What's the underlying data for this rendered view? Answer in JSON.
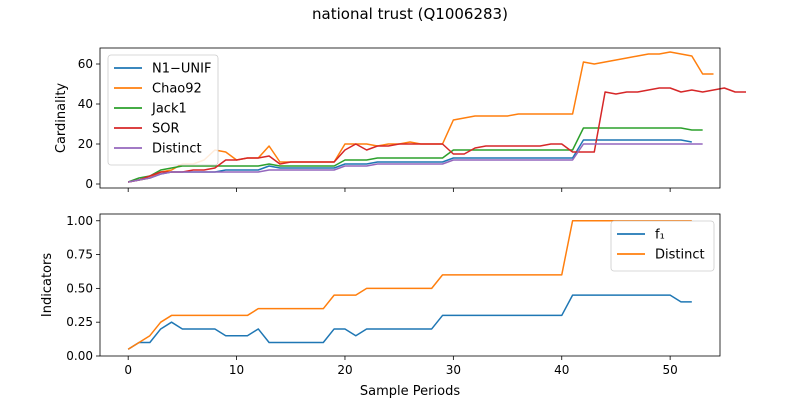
{
  "figure": {
    "title": "national trust (Q1006283)"
  },
  "chart_data": [
    {
      "type": "line",
      "ylabel": "Cardinality",
      "xlabel": "",
      "xlim": [
        -2.6,
        54.6
      ],
      "ylim": [
        -2,
        68
      ],
      "xticks": [
        0,
        10,
        20,
        30,
        40,
        50
      ],
      "yticks": [
        0,
        20,
        40,
        60
      ],
      "show_x_ticklabels": false,
      "grid": false,
      "legend": {
        "position": "top-left",
        "entries": [
          "N1−UNIF",
          "Chao92",
          "Jack1",
          "SOR",
          "Distinct"
        ]
      },
      "series": [
        {
          "name": "N1−UNIF",
          "color": "#1f77b4",
          "values": [
            1,
            2,
            3,
            5,
            6,
            6,
            6,
            6,
            6,
            7,
            7,
            7,
            7,
            9,
            8,
            8,
            8,
            8,
            8,
            8,
            10,
            10,
            10,
            11,
            11,
            11,
            11,
            11,
            11,
            11,
            13,
            13,
            13,
            13,
            13,
            13,
            13,
            13,
            13,
            13,
            13,
            13,
            22,
            22,
            22,
            22,
            22,
            22,
            22,
            22,
            22,
            22,
            21
          ]
        },
        {
          "name": "Chao92",
          "color": "#ff7f0e",
          "values": [
            1,
            2,
            3,
            6,
            7,
            10,
            10,
            12,
            17,
            16,
            12,
            13,
            13,
            19,
            11,
            11,
            11,
            11,
            11,
            11,
            20,
            20,
            20,
            19,
            20,
            20,
            21,
            20,
            20,
            20,
            32,
            33,
            34,
            34,
            34,
            34,
            35,
            35,
            35,
            35,
            35,
            35,
            61,
            60,
            61,
            62,
            63,
            64,
            65,
            65,
            66,
            65,
            64,
            55,
            55
          ]
        },
        {
          "name": "Jack1",
          "color": "#2ca02c",
          "values": [
            1,
            3,
            4,
            7,
            8,
            9,
            9,
            9,
            9,
            9,
            9,
            9,
            9,
            10,
            9,
            9,
            9,
            9,
            9,
            9,
            12,
            12,
            12,
            13,
            13,
            13,
            13,
            13,
            13,
            13,
            17,
            17,
            17,
            17,
            17,
            17,
            17,
            17,
            17,
            17,
            17,
            17,
            28,
            28,
            28,
            28,
            28,
            28,
            28,
            28,
            28,
            28,
            27,
            27
          ]
        },
        {
          "name": "SOR",
          "color": "#d62728",
          "values": [
            1,
            2,
            4,
            6,
            6,
            6,
            7,
            7,
            8,
            12,
            12,
            13,
            13,
            14,
            10,
            11,
            11,
            11,
            11,
            11,
            17,
            20,
            17,
            19,
            19,
            20,
            20,
            20,
            20,
            20,
            15,
            15,
            18,
            19,
            19,
            19,
            19,
            19,
            19,
            20,
            20,
            16,
            16,
            16,
            46,
            45,
            46,
            46,
            47,
            48,
            48,
            46,
            47,
            46,
            47,
            48,
            46,
            46
          ]
        },
        {
          "name": "Distinct",
          "color": "#9467bd",
          "values": [
            1,
            2,
            3,
            5,
            6,
            6,
            6,
            6,
            6,
            6,
            6,
            6,
            6,
            7,
            7,
            7,
            7,
            7,
            7,
            7,
            9,
            9,
            9,
            10,
            10,
            10,
            10,
            10,
            10,
            10,
            12,
            12,
            12,
            12,
            12,
            12,
            12,
            12,
            12,
            12,
            12,
            12,
            20,
            20,
            20,
            20,
            20,
            20,
            20,
            20,
            20,
            20,
            20,
            20
          ]
        }
      ]
    },
    {
      "type": "line",
      "ylabel": "Indicators",
      "xlabel": "Sample Periods",
      "xlim": [
        -2.6,
        54.6
      ],
      "ylim": [
        0,
        1.05
      ],
      "xticks": [
        0,
        10,
        20,
        30,
        40,
        50
      ],
      "yticks": [
        0.0,
        0.25,
        0.5,
        0.75,
        1.0
      ],
      "ytick_labels": [
        "0.00",
        "0.25",
        "0.50",
        "0.75",
        "1.00"
      ],
      "show_x_ticklabels": true,
      "grid": false,
      "legend": {
        "position": "top-right",
        "entries": [
          "f₁",
          "Distinct"
        ]
      },
      "series": [
        {
          "name": "f₁",
          "color": "#1f77b4",
          "values": [
            0.05,
            0.1,
            0.1,
            0.2,
            0.25,
            0.2,
            0.2,
            0.2,
            0.2,
            0.15,
            0.15,
            0.15,
            0.2,
            0.1,
            0.1,
            0.1,
            0.1,
            0.1,
            0.1,
            0.2,
            0.2,
            0.15,
            0.2,
            0.2,
            0.2,
            0.2,
            0.2,
            0.2,
            0.2,
            0.3,
            0.3,
            0.3,
            0.3,
            0.3,
            0.3,
            0.3,
            0.3,
            0.3,
            0.3,
            0.3,
            0.3,
            0.45,
            0.45,
            0.45,
            0.45,
            0.45,
            0.45,
            0.45,
            0.45,
            0.45,
            0.45,
            0.4,
            0.4
          ]
        },
        {
          "name": "Distinct",
          "color": "#ff7f0e",
          "values": [
            0.05,
            0.1,
            0.15,
            0.25,
            0.3,
            0.3,
            0.3,
            0.3,
            0.3,
            0.3,
            0.3,
            0.3,
            0.35,
            0.35,
            0.35,
            0.35,
            0.35,
            0.35,
            0.35,
            0.45,
            0.45,
            0.45,
            0.5,
            0.5,
            0.5,
            0.5,
            0.5,
            0.5,
            0.5,
            0.6,
            0.6,
            0.6,
            0.6,
            0.6,
            0.6,
            0.6,
            0.6,
            0.6,
            0.6,
            0.6,
            0.6,
            1.0,
            1.0,
            1.0,
            1.0,
            1.0,
            1.0,
            1.0,
            1.0,
            1.0,
            1.0,
            1.0,
            1.0
          ]
        }
      ]
    }
  ]
}
